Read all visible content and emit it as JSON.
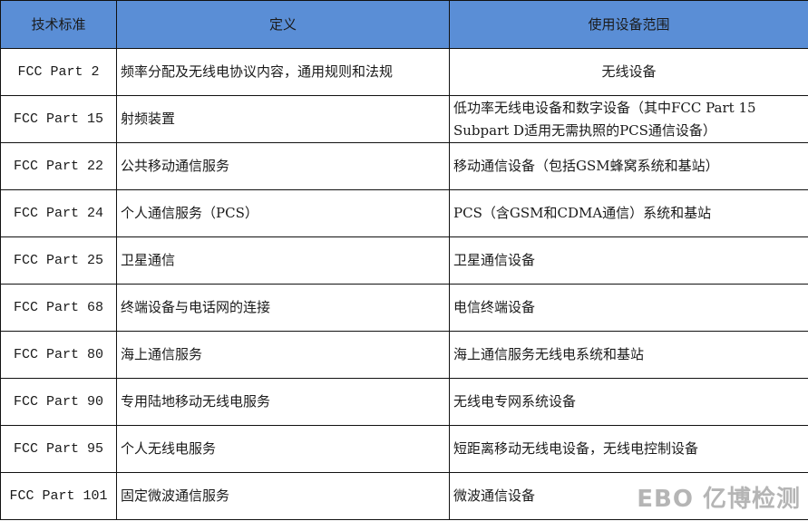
{
  "headers": [
    "技术标准",
    "定义",
    "使用设备范围"
  ],
  "rows": [
    {
      "standard": "FCC Part 2",
      "definition": "频率分配及无线电协议内容，通用规则和法规",
      "scope": "无线设备",
      "scope_centered": true
    },
    {
      "standard": "FCC Part 15",
      "definition": "射频装置",
      "scope": "低功率无线电设备和数字设备（其中FCC Part 15 Subpart D适用无需执照的PCS通信设备）"
    },
    {
      "standard": "FCC Part 22",
      "definition": "公共移动通信服务",
      "scope": "移动通信设备（包括GSM蜂窝系统和基站）"
    },
    {
      "standard": "FCC Part 24",
      "definition": "个人通信服务（PCS）",
      "scope": "PCS（含GSM和CDMA通信）系统和基站"
    },
    {
      "standard": "FCC Part 25",
      "definition": "卫星通信",
      "scope": "卫星通信设备"
    },
    {
      "standard": "FCC Part 68",
      "definition": "终端设备与电话网的连接",
      "scope": "电信终端设备"
    },
    {
      "standard": "FCC Part 80",
      "definition": "海上通信服务",
      "scope": "海上通信服务无线电系统和基站"
    },
    {
      "standard": "FCC Part 90",
      "definition": "专用陆地移动无线电服务",
      "scope": "无线电专网系统设备"
    },
    {
      "standard": "FCC Part 95",
      "definition": "个人无线电服务",
      "scope": "短距离移动无线电设备，无线电控制设备"
    },
    {
      "standard": "FCC Part 101",
      "definition": "固定微波通信服务",
      "scope": "微波通信设备"
    }
  ],
  "watermark": "EBO 亿博检测",
  "colors": {
    "header_bg": "#5a8ed6",
    "watermark": "#b5b5b5"
  }
}
